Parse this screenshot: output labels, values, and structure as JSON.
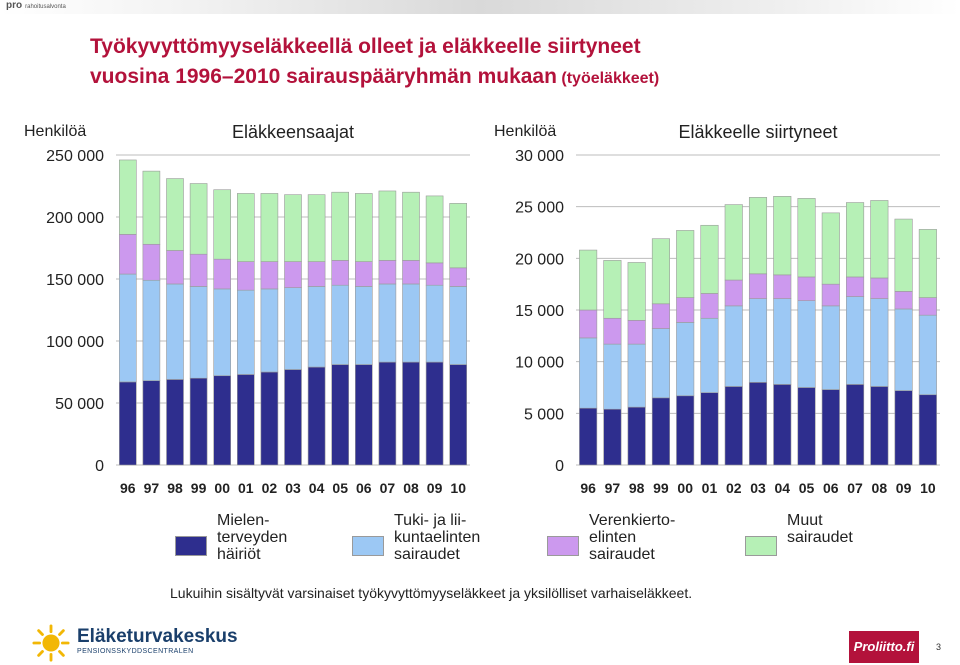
{
  "header": {
    "brand": "pro",
    "brand_sub": "rahoitusalvonta"
  },
  "title": {
    "line1": "Työkyvyttömyyseläkkeellä olleet ja eläkkeelle siirtyneet",
    "line2": "vuosina 1996–2010 sairauspääryhmän mukaan",
    "line2_suffix": " (työeläkkeet)"
  },
  "colors": {
    "mental": "#2e2e8e",
    "musculo": "#9cc8f4",
    "cardio": "#cc99ee",
    "other": "#b6f0b6",
    "title": "#b3123b",
    "brand_red": "#b3123b",
    "logo_yellow": "#f2b705",
    "logo_blue": "#1a3f6b"
  },
  "legend": [
    {
      "key": "mental",
      "label": "Mielen-\nterveyden\nhäiriöt"
    },
    {
      "key": "musculo",
      "label": "Tuki- ja lii-\nkuntaelinten\nsairaudet"
    },
    {
      "key": "cardio",
      "label": "Verenkierto-\nelinten\nsairaudet"
    },
    {
      "key": "other",
      "label": "Muut\nsairaudet"
    }
  ],
  "chart_data": [
    {
      "type": "bar",
      "stacked": true,
      "title": "Eläkkeensaajat",
      "ylabel": "Henkilöä",
      "categories": [
        "96",
        "97",
        "98",
        "99",
        "00",
        "01",
        "02",
        "03",
        "04",
        "05",
        "06",
        "07",
        "08",
        "09",
        "10"
      ],
      "ylim": [
        0,
        250000
      ],
      "yticks": [
        0,
        50000,
        100000,
        150000,
        200000,
        250000
      ],
      "ytick_labels": [
        "0",
        "50 000",
        "100 000",
        "150 000",
        "200 000",
        "250 000"
      ],
      "grid": true,
      "series": [
        {
          "name": "Mielenterveyden häiriöt",
          "key": "mental",
          "values": [
            67000,
            68000,
            69000,
            70000,
            72000,
            73000,
            75000,
            77000,
            79000,
            81000,
            81000,
            83000,
            83000,
            83000,
            81000
          ]
        },
        {
          "name": "Tuki- ja liikuntaelinten sairaudet",
          "key": "musculo",
          "values": [
            87000,
            81000,
            77000,
            74000,
            70000,
            68000,
            67000,
            66000,
            65000,
            64000,
            63000,
            63000,
            63000,
            62000,
            63000
          ]
        },
        {
          "name": "Verenkiertoelinten sairaudet",
          "key": "cardio",
          "values": [
            32000,
            29000,
            27000,
            26000,
            24000,
            23000,
            22000,
            21000,
            20000,
            20000,
            20000,
            19000,
            19000,
            18000,
            15000
          ]
        },
        {
          "name": "Muut sairaudet",
          "key": "other",
          "values": [
            60000,
            59000,
            58000,
            57000,
            56000,
            55000,
            55000,
            54000,
            54000,
            55000,
            55000,
            56000,
            55000,
            54000,
            52000
          ]
        }
      ]
    },
    {
      "type": "bar",
      "stacked": true,
      "title": "Eläkkeelle siirtyneet",
      "ylabel": "Henkilöä",
      "categories": [
        "96",
        "97",
        "98",
        "99",
        "00",
        "01",
        "02",
        "03",
        "04",
        "05",
        "06",
        "07",
        "08",
        "09",
        "10"
      ],
      "ylim": [
        0,
        30000
      ],
      "yticks": [
        0,
        5000,
        10000,
        15000,
        20000,
        25000,
        30000
      ],
      "ytick_labels": [
        "0",
        "5 000",
        "10 000",
        "15 000",
        "20 000",
        "25 000",
        "30 000"
      ],
      "grid": true,
      "series": [
        {
          "name": "Mielenterveyden häiriöt",
          "key": "mental",
          "values": [
            5500,
            5400,
            5600,
            6500,
            6700,
            7000,
            7600,
            8000,
            7800,
            7500,
            7300,
            7800,
            7600,
            7200,
            6800
          ]
        },
        {
          "name": "Tuki- ja liikuntaelinten sairaudet",
          "key": "musculo",
          "values": [
            6800,
            6300,
            6100,
            6700,
            7100,
            7200,
            7800,
            8100,
            8300,
            8400,
            8100,
            8500,
            8500,
            7900,
            7700
          ]
        },
        {
          "name": "Verenkiertoelinten sairaudet",
          "key": "cardio",
          "values": [
            2700,
            2500,
            2300,
            2400,
            2400,
            2400,
            2500,
            2400,
            2300,
            2300,
            2100,
            1900,
            2000,
            1700,
            1700
          ]
        },
        {
          "name": "Muut sairaudet",
          "key": "other",
          "values": [
            5800,
            5600,
            5600,
            6300,
            6500,
            6600,
            7300,
            7400,
            7600,
            7600,
            6900,
            7200,
            7500,
            7000,
            6600
          ]
        }
      ]
    }
  ],
  "footnote": "Lukuihin sisältyvät varsinaiset työkyvyttömyyseläkkeet ja yksilölliset varhaiseläkkeet.",
  "footer": {
    "org_name": "Eläketurvakeskus",
    "org_sub": "PENSIONSSKYDDSCENTRALEN",
    "partner": "Proliitto.fi",
    "page": "3"
  }
}
